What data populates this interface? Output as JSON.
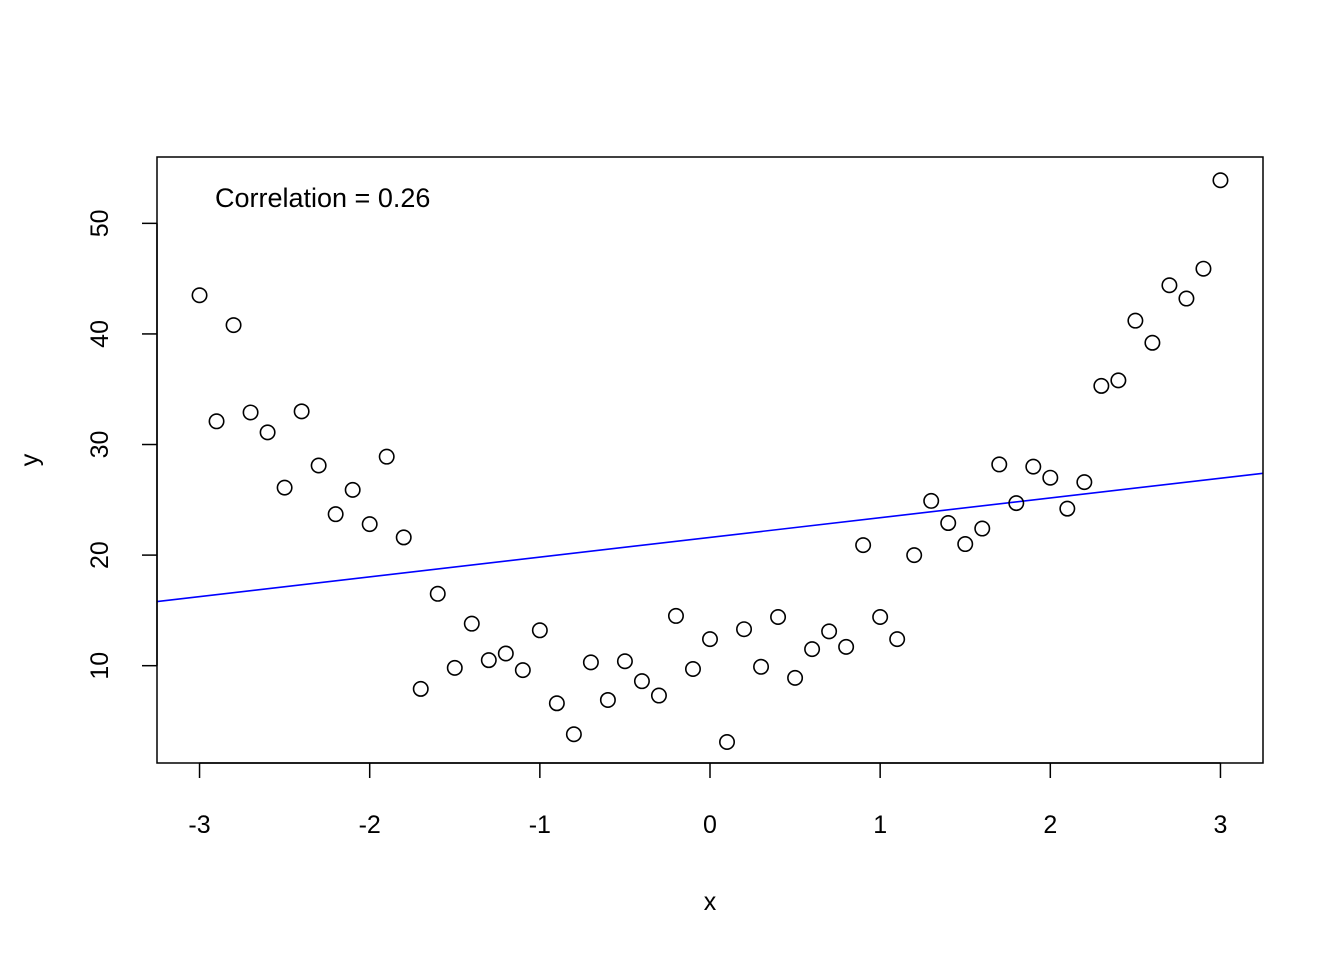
{
  "chart_data": {
    "type": "scatter",
    "title": "",
    "xlabel": "x",
    "ylabel": "y",
    "xlim": [
      -3.25,
      3.25
    ],
    "ylim": [
      1.2,
      56
    ],
    "xticks": [
      "-3",
      "-2",
      "-1",
      "0",
      "1",
      "2",
      "3"
    ],
    "yticks": [
      "10",
      "20",
      "30",
      "40",
      "50"
    ],
    "xtick_values": [
      -3,
      -2,
      -1,
      0,
      1,
      2,
      3
    ],
    "ytick_values": [
      10,
      20,
      30,
      40,
      50
    ],
    "grid": false,
    "annotation": "Correlation =  0.26",
    "point_style": "open-circle",
    "point_color": "#000000",
    "fit_line": {
      "color": "#0000ff",
      "start": [
        -3.25,
        15.8
      ],
      "end": [
        3.25,
        27.4
      ]
    },
    "x": [
      -3.0,
      -2.9,
      -2.8,
      -2.7,
      -2.6,
      -2.5,
      -2.4,
      -2.3,
      -2.2,
      -2.1,
      -2.0,
      -1.9,
      -1.8,
      -1.7,
      -1.6,
      -1.5,
      -1.4,
      -1.3,
      -1.2,
      -1.1,
      -1.0,
      -0.9,
      -0.8,
      -0.7,
      -0.6,
      -0.5,
      -0.4,
      -0.3,
      -0.2,
      -0.1,
      0.0,
      0.1,
      0.2,
      0.3,
      0.4,
      0.5,
      0.6,
      0.7,
      0.8,
      0.9,
      1.0,
      1.1,
      1.2,
      1.3,
      1.4,
      1.5,
      1.6,
      1.7,
      1.8,
      1.9,
      2.0,
      2.1,
      2.2,
      2.3,
      2.4,
      2.5,
      2.6,
      2.7,
      2.8,
      2.9,
      3.0
    ],
    "y": [
      43.5,
      32.1,
      40.8,
      32.9,
      31.1,
      26.1,
      33.0,
      28.1,
      23.7,
      25.9,
      22.8,
      28.9,
      21.6,
      7.9,
      16.5,
      9.8,
      13.8,
      10.5,
      11.1,
      9.6,
      13.2,
      6.6,
      3.8,
      10.3,
      6.9,
      10.4,
      8.6,
      7.3,
      14.5,
      9.7,
      12.4,
      3.1,
      13.3,
      9.9,
      14.4,
      8.9,
      11.5,
      13.1,
      11.7,
      20.9,
      14.4,
      12.4,
      20.0,
      24.9,
      22.9,
      21.0,
      22.4,
      28.2,
      24.7,
      28.0,
      27.0,
      24.2,
      26.6,
      35.3,
      35.8,
      41.2,
      39.2,
      44.4,
      43.2,
      45.9,
      53.9
    ]
  }
}
